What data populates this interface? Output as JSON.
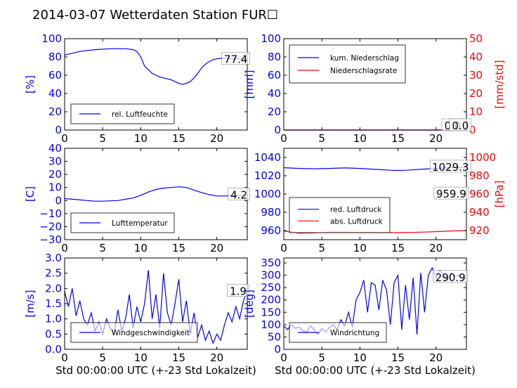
{
  "title": "2014-03-07 Wetterdaten Station FUR☐",
  "colors": {
    "blue": "#0000ff",
    "red": "#ff0000",
    "black": "#000000"
  },
  "chart_data": [
    {
      "id": "humidity",
      "type": "line",
      "ylabel": "[%]",
      "xlim": [
        0,
        24
      ],
      "ylim": [
        0,
        100
      ],
      "xticks": [
        "0",
        "5",
        "10",
        "15",
        "20"
      ],
      "yticks": [
        "0",
        "20",
        "40",
        "60",
        "80",
        "100"
      ],
      "series": [
        {
          "name": "rel. Luftfeuchte",
          "color": "#0000ff",
          "x": [
            0,
            1,
            2,
            3,
            4,
            5,
            6,
            7,
            8,
            9,
            9.5,
            10,
            10.5,
            11,
            11.5,
            12,
            12.5,
            13,
            13.5,
            14,
            14.5,
            15,
            15.5,
            16,
            16.5,
            17,
            17.5,
            18,
            18.5,
            19,
            19.5,
            20,
            21,
            22,
            23,
            24
          ],
          "y": [
            82,
            84,
            86,
            87,
            88,
            88.5,
            89,
            89,
            89,
            88,
            86,
            80,
            70,
            66,
            62,
            60,
            58,
            57,
            56,
            55,
            53,
            51,
            50,
            51,
            53,
            57,
            62,
            68,
            72,
            75,
            77,
            78,
            79,
            78,
            78,
            77.4
          ]
        }
      ],
      "annotation": "77.4"
    },
    {
      "id": "precip",
      "type": "line",
      "ylabel": "[mm]",
      "ylabel_right": "[mm/std]",
      "xlim": [
        0,
        24
      ],
      "ylim": [
        0,
        100
      ],
      "ylim_right": [
        0,
        50
      ],
      "xticks": [
        "0",
        "5",
        "10",
        "15",
        "20"
      ],
      "yticks": [
        "0",
        "20",
        "40",
        "60",
        "80",
        "100"
      ],
      "yticks_right": [
        "0",
        "10",
        "20",
        "30",
        "40",
        "50"
      ],
      "series": [
        {
          "name": "kum. Niederschlag",
          "color": "#0000ff",
          "x": [
            0,
            24
          ],
          "y": [
            0,
            0
          ]
        },
        {
          "name": "Niederschlagsrate",
          "color": "#ff0000",
          "x": [
            0,
            24
          ],
          "y": [
            0,
            0
          ]
        }
      ],
      "annotation": "0.0",
      "annotation2": "0.0"
    },
    {
      "id": "temp",
      "type": "line",
      "ylabel": "[C]",
      "xlim": [
        0,
        24
      ],
      "ylim": [
        -30,
        40
      ],
      "xticks": [
        "0",
        "5",
        "10",
        "15",
        "20"
      ],
      "yticks": [
        "−30",
        "−20",
        "−10",
        "0",
        "10",
        "20",
        "30",
        "40"
      ],
      "series": [
        {
          "name": "Lufttemperatur",
          "color": "#0000ff",
          "x": [
            0,
            1,
            2,
            3,
            4,
            5,
            6,
            7,
            8,
            9,
            10,
            11,
            12,
            13,
            14,
            15,
            16,
            17,
            18,
            19,
            20,
            21,
            22,
            23,
            24
          ],
          "y": [
            1.5,
            1,
            0.5,
            0,
            -0.5,
            -0.5,
            -0.2,
            0,
            1,
            2,
            4,
            6.5,
            8.5,
            9.5,
            10,
            10.5,
            10,
            8,
            6,
            4.5,
            3.5,
            3.5,
            3.8,
            4,
            4.2
          ]
        }
      ],
      "annotation": "4.2"
    },
    {
      "id": "pressure",
      "type": "line",
      "ylabel_right": "[hPa]",
      "xlim": [
        0,
        24
      ],
      "ylim": [
        950,
        1050
      ],
      "ylim_right": [
        910,
        1010
      ],
      "xticks": [
        "0",
        "5",
        "10",
        "15",
        "20"
      ],
      "yticks": [
        "960",
        "980",
        "1000",
        "1020",
        "1040"
      ],
      "yticks_right": [
        "920",
        "940",
        "960",
        "980",
        "1000"
      ],
      "series": [
        {
          "name": "red. Luftdruck",
          "color": "#0000ff",
          "x": [
            0,
            2,
            4,
            6,
            8,
            10,
            12,
            14,
            15,
            16,
            18,
            20,
            22,
            24
          ],
          "y": [
            1028.8,
            1028,
            1027.6,
            1028,
            1028.5,
            1028,
            1027,
            1026,
            1025.8,
            1026,
            1027,
            1028,
            1029,
            1029.3
          ]
        },
        {
          "name": "abs. Luftdruck",
          "color": "#ff0000",
          "x": [
            0,
            2,
            4,
            6,
            8,
            10,
            12,
            14,
            16,
            18,
            20,
            22,
            24
          ],
          "y": [
            959.5,
            957.2,
            957.5,
            958.2,
            958.2,
            958.0,
            958.0,
            957.8,
            957.8,
            958.2,
            958.8,
            959.5,
            959.9
          ]
        }
      ],
      "annotation": "1029.3",
      "annotation2": "959.9"
    },
    {
      "id": "wind",
      "type": "line",
      "ylabel": "[m/s]",
      "xlabel": "Std 00:00:00 UTC (+-23 Std Lokalzeit)",
      "xlim": [
        0,
        24
      ],
      "ylim": [
        0,
        3
      ],
      "xticks": [
        "0",
        "5",
        "10",
        "15",
        "20"
      ],
      "yticks": [
        "0.0",
        "0.5",
        "1.0",
        "1.5",
        "2.0",
        "2.5",
        "3.0"
      ],
      "series": [
        {
          "name": "Windgeschwindigkeit",
          "color": "#0000ff",
          "x": [
            0,
            0.5,
            1,
            1.5,
            2,
            2.5,
            3,
            3.5,
            4,
            4.5,
            5,
            5.5,
            6,
            6.5,
            7,
            7.5,
            8,
            8.5,
            9,
            9.5,
            10,
            10.5,
            11,
            11.5,
            12,
            12.5,
            13,
            13.5,
            14,
            14.5,
            15,
            15.5,
            16,
            16.5,
            17,
            17.5,
            18,
            18.5,
            19,
            19.5,
            20,
            20.5,
            21,
            21.5,
            22,
            22.5,
            23,
            23.5,
            24
          ],
          "y": [
            1.9,
            1.4,
            2.0,
            1.1,
            1.6,
            1.0,
            0.8,
            1.2,
            0.6,
            0.9,
            0.5,
            1.0,
            0.7,
            0.5,
            1.3,
            0.6,
            1.0,
            1.8,
            0.7,
            1.4,
            0.9,
            1.5,
            2.6,
            1.0,
            1.8,
            0.7,
            2.5,
            1.2,
            0.8,
            1.5,
            2.3,
            0.9,
            1.6,
            0.5,
            1.2,
            0.4,
            0.8,
            0.3,
            0.6,
            0.2,
            0.5,
            0.3,
            0.8,
            1.2,
            0.9,
            1.4,
            1.0,
            1.6,
            1.9
          ]
        }
      ],
      "annotation": "1.9"
    },
    {
      "id": "winddir",
      "type": "line",
      "ylabel": "[deg]",
      "xlabel": "Std 00:00:00 UTC (+-23 Std Lokalzeit)",
      "xlim": [
        0,
        24
      ],
      "ylim": [
        0,
        370
      ],
      "xticks": [
        "0",
        "5",
        "10",
        "15",
        "20"
      ],
      "yticks": [
        "0",
        "50",
        "100",
        "150",
        "200",
        "250",
        "300",
        "350"
      ],
      "series": [
        {
          "name": "Windrichtung",
          "color": "#0000ff",
          "x": [
            0,
            0.5,
            1,
            1.5,
            2,
            2.5,
            3,
            3.5,
            4,
            4.5,
            5,
            5.5,
            6,
            6.5,
            7,
            7.5,
            8,
            8.5,
            9,
            9.5,
            10,
            10.5,
            11,
            11.5,
            12,
            12.5,
            13,
            13.5,
            14,
            14.5,
            15,
            15.5,
            16,
            16.5,
            17,
            17.5,
            18,
            18.5,
            19,
            19.5,
            20,
            20.5,
            21,
            21.5,
            22,
            22.5,
            23,
            23.5,
            24
          ],
          "y": [
            95,
            80,
            100,
            85,
            90,
            75,
            70,
            95,
            80,
            60,
            85,
            70,
            90,
            100,
            80,
            120,
            95,
            150,
            90,
            200,
            230,
            280,
            150,
            270,
            260,
            160,
            280,
            240,
            100,
            270,
            300,
            80,
            260,
            120,
            290,
            60,
            310,
            150,
            300,
            330,
            290,
            320,
            300,
            280,
            310,
            295,
            300,
            285,
            290.9
          ]
        }
      ],
      "annotation": "290.9"
    }
  ]
}
